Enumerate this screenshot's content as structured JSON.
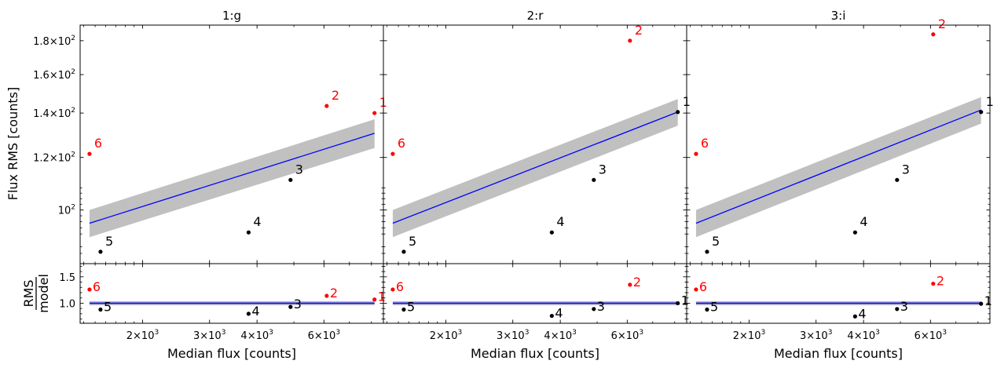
{
  "figure": {
    "ylabel_top": "Flux RMS [counts]",
    "ylabel_bottom_num": "RMS",
    "ylabel_bottom_den": "model",
    "xlabel": "Median flux [counts]",
    "colors": {
      "fit_line": "#0000ff",
      "band": "#c0c0c0",
      "outlier": "#ff0000",
      "inlier": "#000000"
    }
  },
  "chart_data": [
    {
      "type": "scatter",
      "title": "1:g",
      "x_scale": "log",
      "y_scale": "log",
      "xlabel": "Median flux [counts]",
      "ylabel": "Flux RMS [counts]",
      "xlim": [
        1370,
        8600
      ],
      "ylim": [
        83,
        190
      ],
      "ratio_ylim": [
        0.62,
        1.75
      ],
      "x_ticks": [
        {
          "v": 2000,
          "b": "2",
          "e": "3"
        },
        {
          "v": 3000,
          "b": "3",
          "e": "3"
        },
        {
          "v": 4000,
          "b": "4",
          "e": "3"
        },
        {
          "v": 6000,
          "b": "6",
          "e": "3"
        }
      ],
      "y_ticks": [
        {
          "v": 100,
          "b": "",
          "e": "2"
        },
        {
          "v": 120,
          "b": "1.2",
          "e": "2"
        },
        {
          "v": 140,
          "b": "1.4",
          "e": "2"
        },
        {
          "v": 160,
          "b": "1.6",
          "e": "2"
        },
        {
          "v": 180,
          "b": "1.8",
          "e": "2"
        }
      ],
      "ratio_ticks": [
        1.0,
        1.5
      ],
      "fit_line": {
        "x": [
          1450,
          8150
        ],
        "y": [
          95.5,
          130.5
        ]
      },
      "band": {
        "x": [
          1450,
          8150
        ],
        "lower": [
          91,
          124
        ],
        "upper": [
          100,
          137
        ]
      },
      "points": [
        {
          "label": "1",
          "x": 8150,
          "y": 140,
          "ratio": 1.07,
          "outlier": true
        },
        {
          "label": "2",
          "x": 6100,
          "y": 143.5,
          "ratio": 1.14,
          "outlier": true
        },
        {
          "label": "3",
          "x": 4900,
          "y": 111,
          "ratio": 0.93,
          "outlier": false
        },
        {
          "label": "4",
          "x": 3800,
          "y": 92.5,
          "ratio": 0.8,
          "outlier": false
        },
        {
          "label": "5",
          "x": 1550,
          "y": 86.5,
          "ratio": 0.88,
          "outlier": false
        },
        {
          "label": "6",
          "x": 1450,
          "y": 121.5,
          "ratio": 1.26,
          "outlier": true
        }
      ]
    },
    {
      "type": "scatter",
      "title": "2:r",
      "x_scale": "log",
      "y_scale": "log",
      "xlabel": "Median flux [counts]",
      "ylabel": "Flux RMS [counts]",
      "xlim": [
        1370,
        8600
      ],
      "ylim": [
        83,
        190
      ],
      "ratio_ylim": [
        0.62,
        1.75
      ],
      "x_ticks": [
        {
          "v": 2000,
          "b": "2",
          "e": "3"
        },
        {
          "v": 3000,
          "b": "3",
          "e": "3"
        },
        {
          "v": 4000,
          "b": "4",
          "e": "3"
        },
        {
          "v": 6000,
          "b": "6",
          "e": "3"
        }
      ],
      "y_ticks": [],
      "ratio_ticks": [],
      "fit_line": {
        "x": [
          1450,
          8150
        ],
        "y": [
          95.5,
          140.5
        ]
      },
      "band": {
        "x": [
          1450,
          8150
        ],
        "lower": [
          91,
          134
        ],
        "upper": [
          100,
          147
        ]
      },
      "points": [
        {
          "label": "1",
          "x": 8150,
          "y": 140.5,
          "ratio": 1.0,
          "outlier": false
        },
        {
          "label": "2",
          "x": 6100,
          "y": 180,
          "ratio": 1.35,
          "outlier": true
        },
        {
          "label": "3",
          "x": 4900,
          "y": 111,
          "ratio": 0.89,
          "outlier": false
        },
        {
          "label": "4",
          "x": 3800,
          "y": 92.5,
          "ratio": 0.76,
          "outlier": false
        },
        {
          "label": "5",
          "x": 1550,
          "y": 86.5,
          "ratio": 0.88,
          "outlier": false
        },
        {
          "label": "6",
          "x": 1450,
          "y": 121.5,
          "ratio": 1.26,
          "outlier": true
        }
      ]
    },
    {
      "type": "scatter",
      "title": "3:i",
      "x_scale": "log",
      "y_scale": "log",
      "xlabel": "Median flux [counts]",
      "ylabel": "Flux RMS [counts]",
      "xlim": [
        1370,
        8600
      ],
      "ylim": [
        83,
        190
      ],
      "ratio_ylim": [
        0.62,
        1.75
      ],
      "x_ticks": [
        {
          "v": 2000,
          "b": "2",
          "e": "3"
        },
        {
          "v": 3000,
          "b": "3",
          "e": "3"
        },
        {
          "v": 4000,
          "b": "4",
          "e": "3"
        },
        {
          "v": 6000,
          "b": "6",
          "e": "3"
        }
      ],
      "y_ticks": [],
      "ratio_ticks": [],
      "fit_line": {
        "x": [
          1450,
          8150
        ],
        "y": [
          95.5,
          141.5
        ]
      },
      "band": {
        "x": [
          1450,
          8150
        ],
        "lower": [
          91,
          135
        ],
        "upper": [
          100,
          148
        ]
      },
      "points": [
        {
          "label": "1",
          "x": 8150,
          "y": 140.5,
          "ratio": 0.99,
          "outlier": false
        },
        {
          "label": "2",
          "x": 6100,
          "y": 184,
          "ratio": 1.37,
          "outlier": true
        },
        {
          "label": "3",
          "x": 4900,
          "y": 111,
          "ratio": 0.89,
          "outlier": false
        },
        {
          "label": "4",
          "x": 3800,
          "y": 92.5,
          "ratio": 0.75,
          "outlier": false
        },
        {
          "label": "5",
          "x": 1550,
          "y": 86.5,
          "ratio": 0.88,
          "outlier": false
        },
        {
          "label": "6",
          "x": 1450,
          "y": 121.5,
          "ratio": 1.26,
          "outlier": true
        }
      ]
    }
  ]
}
